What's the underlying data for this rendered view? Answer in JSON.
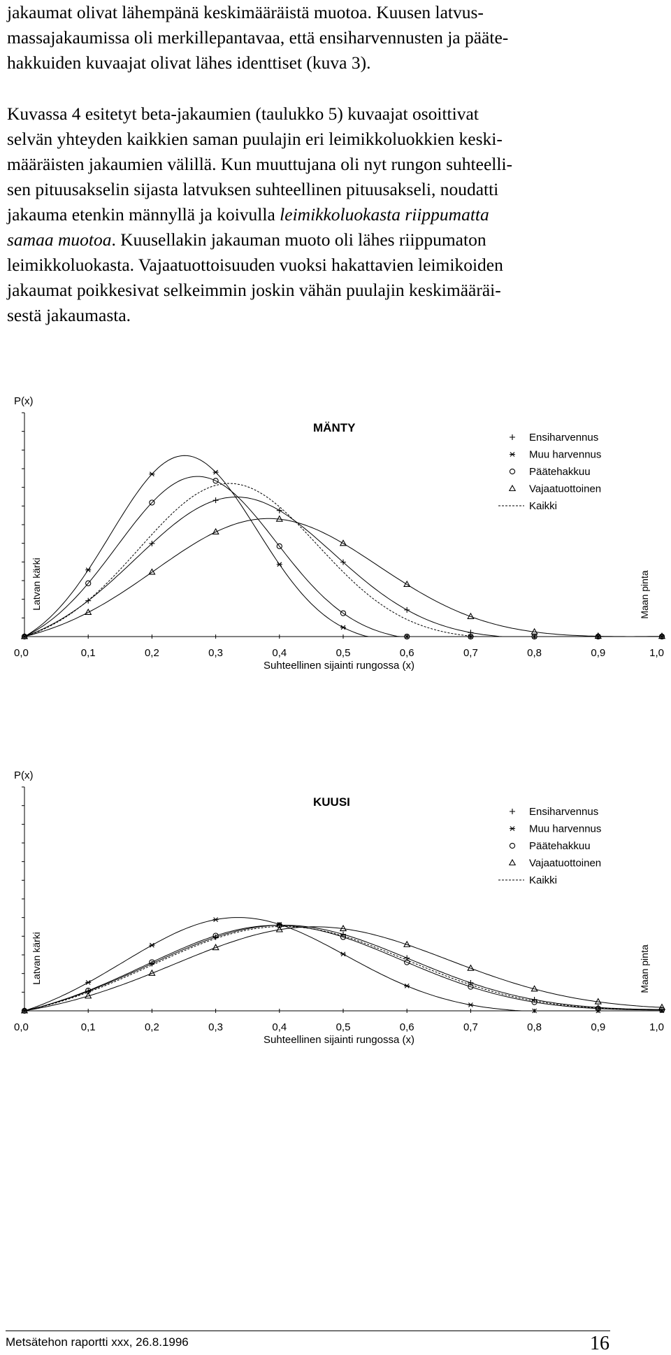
{
  "text": {
    "p1_lines": [
      "jakaumat olivat lähempänä keskimääräistä muotoa. Kuusen latvus-",
      "massajakaumissa oli merkillepantavaa, että ensiharvennusten ja pääte-",
      "hakkuiden kuvaajat olivat lähes identtiset (kuva 3)."
    ],
    "p2_lines": [
      "Kuvassa 4 esitetyt beta-jakaumien (taulukko 5) kuvaajat osoittivat",
      "selvän yhteyden kaikkien saman puulajin eri leimikkoluokkien keski-",
      "määräisten jakaumien välillä. Kun muuttujana oli nyt rungon suhteelli-",
      "sen pituusakselin sijasta latvuksen suhteellinen pituusakseli, noudatti"
    ],
    "p2_l5_a": "jakauma etenkin männyllä ja koivulla ",
    "p2_l5_em": "leimikkoluokasta riippumatta",
    "p2_l6_em": "samaa muotoa",
    "p2_l6_b": ". Kuusellakin jakauman muoto oli lähes riippumaton",
    "p2_lines_end": [
      "leimikkoluokasta. Vajaatuottoisuuden vuoksi hakattavien leimikoiden",
      "jakaumat poikkesivat selkeimmin joskin vähän puulajin keskimääräi-",
      "sestä jakaumasta."
    ]
  },
  "footer": {
    "left": "Metsätehon raportti xxx,     26.8.1996",
    "page_number": "16"
  },
  "chart_data": [
    {
      "type": "line",
      "title": "MÄNTY",
      "ylabel": "P(x)",
      "xlabel": "Suhteellinen sijainti rungossa (x)",
      "left_side_label": "Latvan kärki",
      "right_side_label": "Maan pinta",
      "xlim": [
        0,
        1
      ],
      "x_ticks": [
        "0,0",
        "0,1",
        "0,2",
        "0,3",
        "0,4",
        "0,5",
        "0,6",
        "0,7",
        "0,8",
        "0,9",
        "1,0"
      ],
      "legend_position": "top-right",
      "series": [
        {
          "name": "Ensiharvennus",
          "marker": "plus",
          "peak_x": 0.33,
          "peak_y": 0.67,
          "spread": 0.155
        },
        {
          "name": "Muu harvennus",
          "marker": "star",
          "peak_x": 0.25,
          "peak_y": 0.87,
          "spread": 0.115
        },
        {
          "name": "Päätehakkuu",
          "marker": "circle",
          "peak_x": 0.27,
          "peak_y": 0.77,
          "spread": 0.125
        },
        {
          "name": "Vajaatuottoinen",
          "marker": "triangle",
          "peak_x": 0.38,
          "peak_y": 0.56,
          "spread": 0.175
        },
        {
          "name": "Kaikki",
          "marker": "none",
          "dashed": true,
          "peak_x": 0.32,
          "peak_y": 0.72,
          "spread": 0.14
        }
      ]
    },
    {
      "type": "line",
      "title": "KUUSI",
      "ylabel": "P(x)",
      "xlabel": "Suhteellinen sijainti rungossa (x)",
      "left_side_label": "Latvan kärki",
      "right_side_label": "Maan pinta",
      "xlim": [
        0,
        1
      ],
      "x_ticks": [
        "0,0",
        "0,1",
        "0,2",
        "0,3",
        "0,4",
        "0,5",
        "0,6",
        "0,7",
        "0,8",
        "0,9",
        "1,0"
      ],
      "legend_position": "top-right",
      "series": [
        {
          "name": "Ensiharvennus",
          "marker": "plus",
          "peak_x": 0.4,
          "peak_y": 0.42,
          "spread": 0.205
        },
        {
          "name": "Muu harvennus",
          "marker": "star",
          "peak_x": 0.33,
          "peak_y": 0.47,
          "spread": 0.175
        },
        {
          "name": "Päätehakkuu",
          "marker": "circle",
          "peak_x": 0.39,
          "peak_y": 0.42,
          "spread": 0.2
        },
        {
          "name": "Vajaatuottoinen",
          "marker": "triangle",
          "peak_x": 0.45,
          "peak_y": 0.4,
          "spread": 0.215
        },
        {
          "name": "Kaikki",
          "marker": "none",
          "dashed": true,
          "peak_x": 0.4,
          "peak_y": 0.41,
          "spread": 0.2
        }
      ]
    }
  ]
}
